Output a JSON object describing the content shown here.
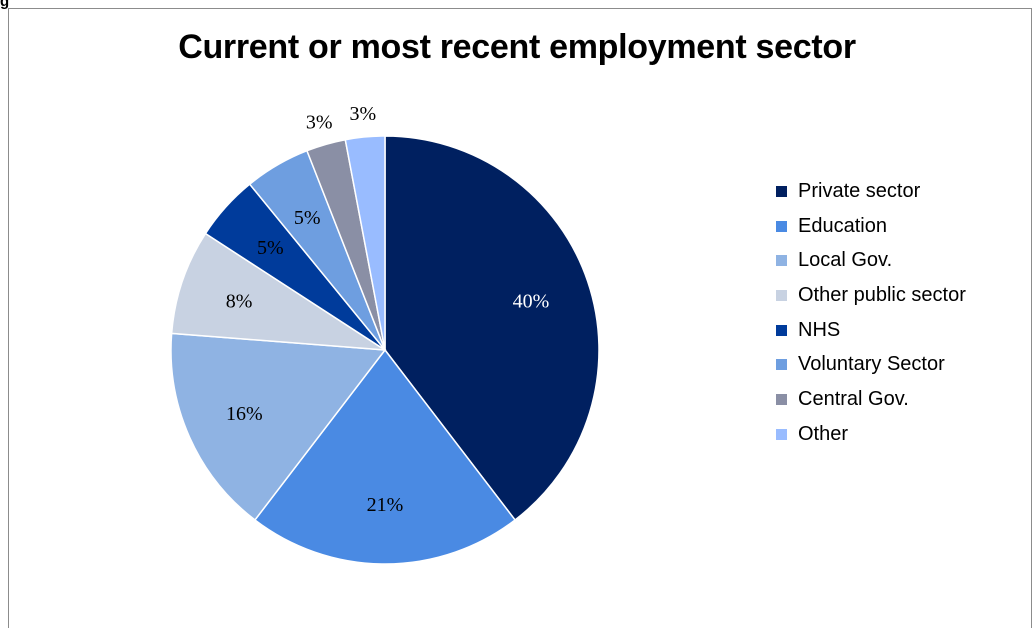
{
  "corner_label": "g",
  "chart_data": {
    "type": "pie",
    "title": "Current or most recent employment sector",
    "legend_position": "right",
    "slices": [
      {
        "label": "Private sector",
        "value": 40,
        "display": "40%",
        "color": "#002060"
      },
      {
        "label": "Education",
        "value": 21,
        "display": "21%",
        "color": "#4a8ae3"
      },
      {
        "label": "Local Gov.",
        "value": 16,
        "display": "16%",
        "color": "#8fb3e3"
      },
      {
        "label": "Other public sector",
        "value": 8,
        "display": "8%",
        "color": "#c8d2e2"
      },
      {
        "label": "NHS",
        "value": 5,
        "display": "5%",
        "color": "#003b9b"
      },
      {
        "label": "Voluntary Sector",
        "value": 5,
        "display": "5%",
        "color": "#6e9ee0"
      },
      {
        "label": "Central Gov.",
        "value": 3,
        "display": "3%",
        "color": "#8a8fa5"
      },
      {
        "label": "Other",
        "value": 3,
        "display": "3%",
        "color": "#99bcff"
      }
    ]
  }
}
